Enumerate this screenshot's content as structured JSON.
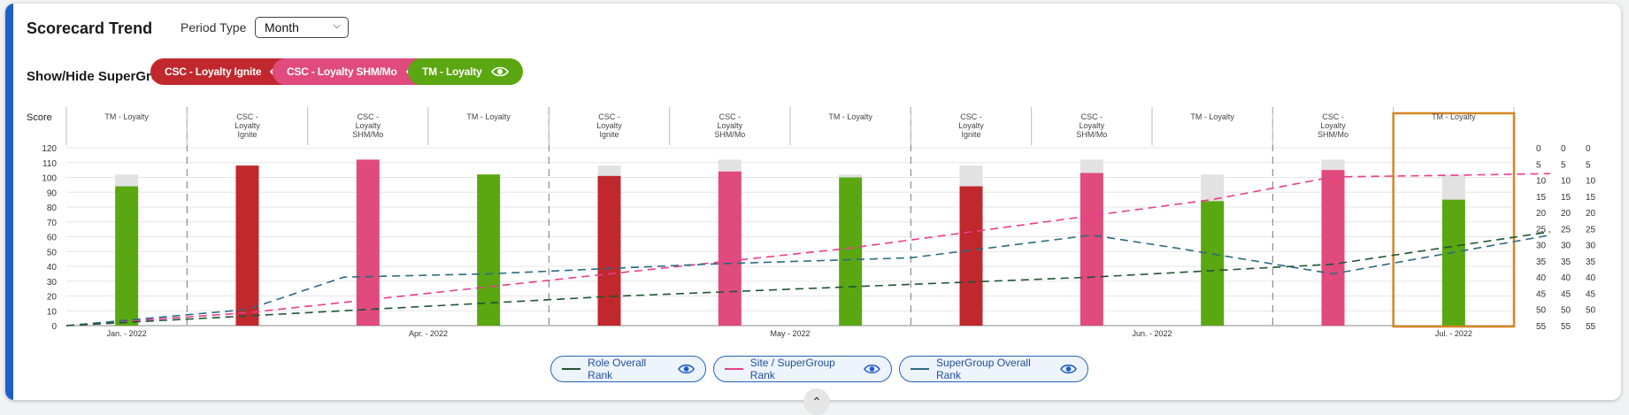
{
  "header": {
    "title": "Scorecard Trend",
    "period_label": "Period Type",
    "period_value": "Month",
    "supergroups_label": "Show/Hide SuperGroups"
  },
  "supergroups": [
    {
      "label": "CSC - Loyalty Ignite",
      "color": "#c0282d"
    },
    {
      "label": "CSC - Loyalty SHM/Mo",
      "color": "#e04a7d"
    },
    {
      "label": "TM - Loyalty",
      "color": "#5aa712"
    }
  ],
  "legend": [
    {
      "label": "Role Overall Rank",
      "color": "#1e5631"
    },
    {
      "label": "Site / SuperGroup Rank",
      "color": "#e83e8c"
    },
    {
      "label": "SuperGroup Overall Rank",
      "color": "#2a6b80"
    }
  ],
  "chart_data": {
    "type": "bar",
    "ylabel": "Score",
    "ylim": [
      0,
      120
    ],
    "yticks": [
      0,
      10,
      20,
      30,
      40,
      50,
      60,
      70,
      80,
      90,
      100,
      110,
      120
    ],
    "right_ticks": [
      0,
      5,
      10,
      15,
      20,
      25,
      30,
      35,
      40,
      45,
      50,
      55
    ],
    "right_ylim": [
      0,
      55
    ],
    "right_columns": 3,
    "months": [
      "Jan. - 2022",
      "Apr. - 2022",
      "May - 2022",
      "Jun. - 2022",
      "Jul. - 2022"
    ],
    "bars": [
      {
        "label": "TM - Loyalty",
        "group": "TM - Loyalty",
        "value": 94,
        "max": 102
      },
      {
        "label": "CSC - Loyalty Ignite",
        "group": "CSC - Loyalty Ignite",
        "value": 108,
        "max": 108
      },
      {
        "label": "CSC - Loyalty SHM/Mo",
        "group": "CSC - Loyalty SHM/Mo",
        "value": 112,
        "max": 112
      },
      {
        "label": "TM - Loyalty",
        "group": "TM - Loyalty",
        "value": 102,
        "max": 102
      },
      {
        "label": "CSC - Loyalty Ignite",
        "group": "CSC - Loyalty Ignite",
        "value": 101,
        "max": 108
      },
      {
        "label": "CSC - Loyalty SHM/Mo",
        "group": "CSC - Loyalty SHM/Mo",
        "value": 104,
        "max": 112
      },
      {
        "label": "TM - Loyalty",
        "group": "TM - Loyalty",
        "value": 100,
        "max": 102
      },
      {
        "label": "CSC - Loyalty Ignite",
        "group": "CSC - Loyalty Ignite",
        "value": 94,
        "max": 108
      },
      {
        "label": "CSC - Loyalty SHM/Mo",
        "group": "CSC - Loyalty SHM/Mo",
        "value": 103,
        "max": 112
      },
      {
        "label": "TM - Loyalty",
        "group": "TM - Loyalty",
        "value": 84,
        "max": 102
      },
      {
        "label": "CSC - Loyalty SHM/Mo",
        "group": "CSC - Loyalty SHM/Mo",
        "value": 105,
        "max": 112
      },
      {
        "label": "TM - Loyalty",
        "group": "TM - Loyalty",
        "value": 85,
        "max": 102
      }
    ],
    "highlight_index": 11,
    "series": [
      {
        "name": "Site / SuperGroup Rank",
        "points": [
          [
            0,
            55
          ],
          [
            1,
            51
          ],
          [
            2,
            47
          ],
          [
            3,
            43
          ],
          [
            4,
            39
          ],
          [
            5,
            35
          ],
          [
            6,
            31
          ],
          [
            7,
            26
          ],
          [
            8,
            21
          ],
          [
            9,
            16
          ],
          [
            10,
            9
          ],
          [
            11,
            8.5
          ],
          [
            11.8,
            8
          ]
        ]
      },
      {
        "name": "SuperGroup Overall Rank",
        "points": [
          [
            0,
            55
          ],
          [
            1,
            50
          ],
          [
            1.8,
            40
          ],
          [
            3,
            39
          ],
          [
            4.8,
            36
          ],
          [
            6.5,
            34
          ],
          [
            8,
            27
          ],
          [
            8.7,
            31
          ],
          [
            10,
            39
          ],
          [
            11.8,
            27
          ]
        ]
      },
      {
        "name": "Role Overall Rank",
        "points": [
          [
            0,
            55
          ],
          [
            2,
            50
          ],
          [
            4,
            46
          ],
          [
            6,
            43
          ],
          [
            8,
            40
          ],
          [
            9.5,
            37
          ],
          [
            10,
            36
          ],
          [
            11.8,
            26
          ]
        ]
      }
    ]
  }
}
